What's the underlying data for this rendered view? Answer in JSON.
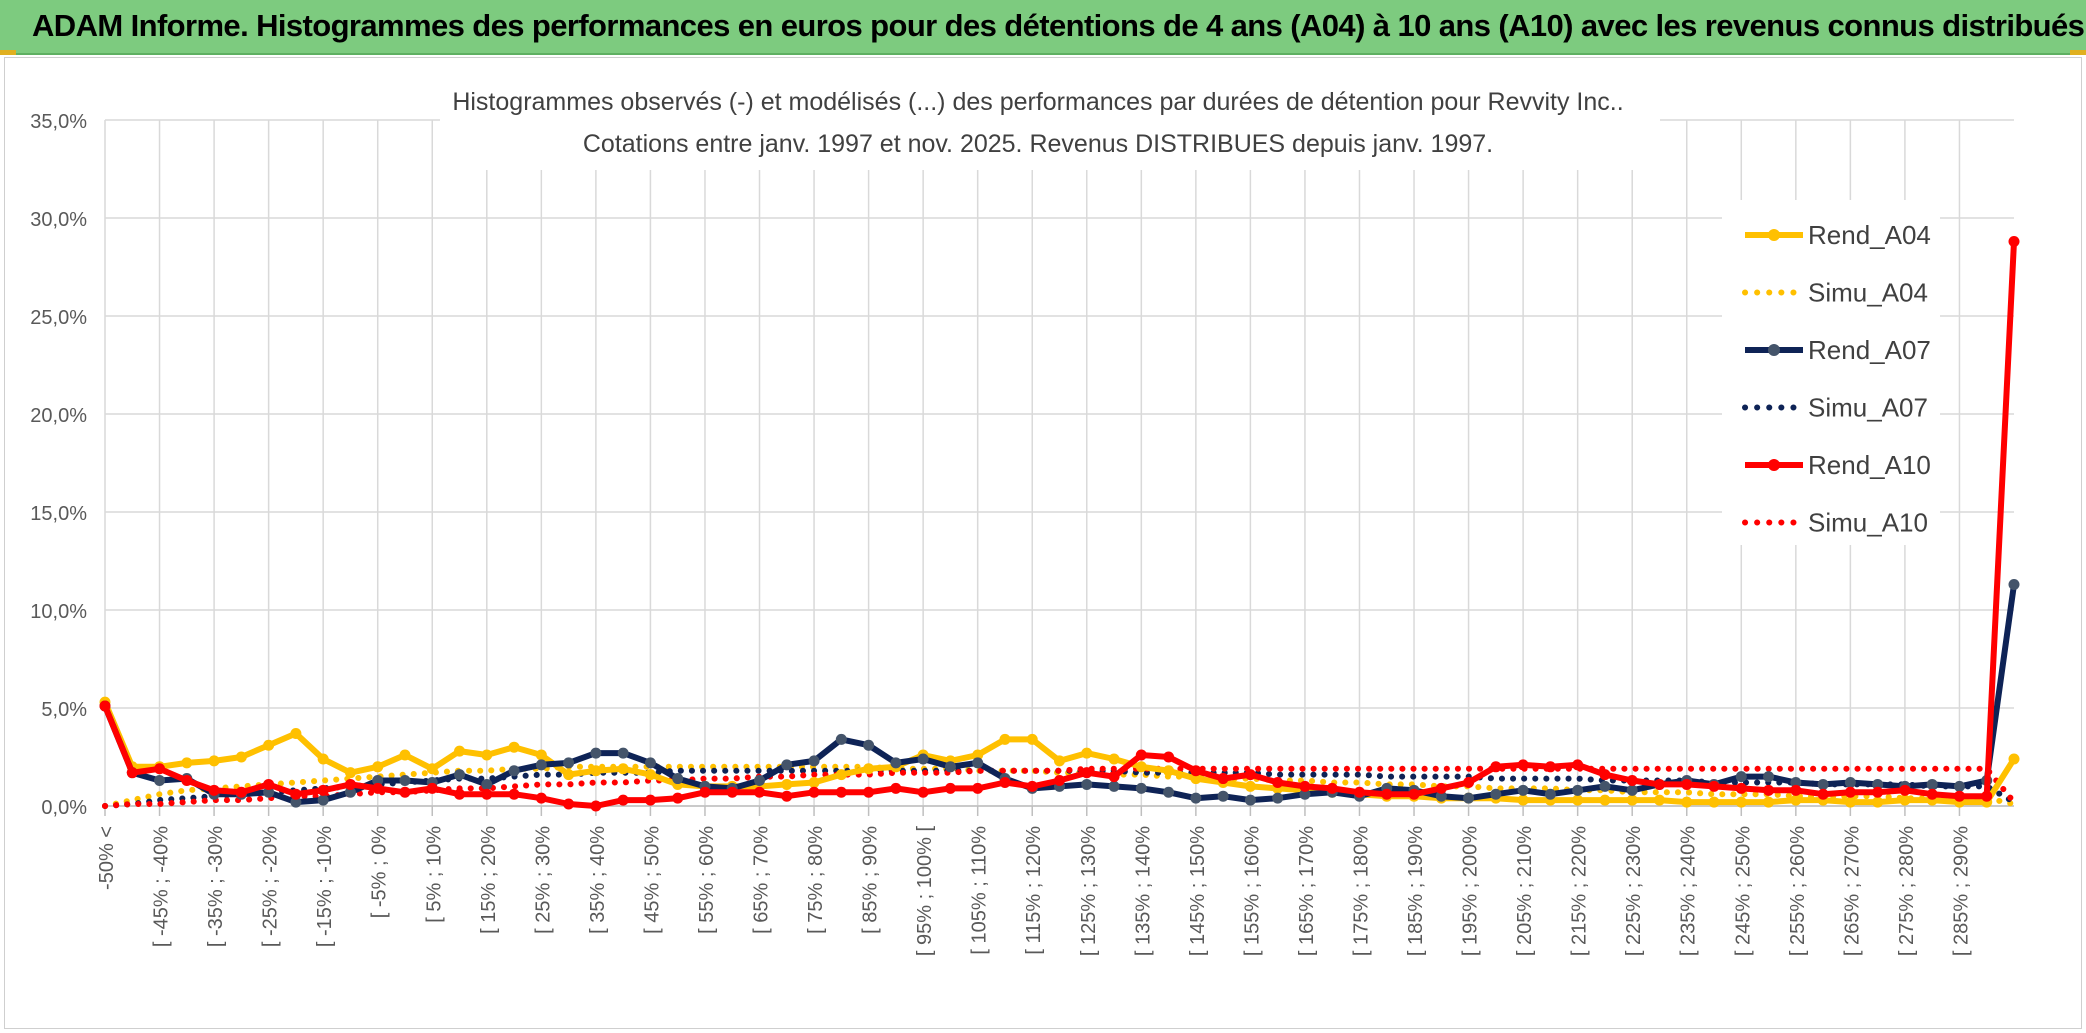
{
  "banner": {
    "title": "ADAM Informe. Histogrammes des performances en euros pour des détentions de 4 ans (A04) à 10 ans (A10) avec les revenus connus distribués",
    "bg_color": "#7dcb7f"
  },
  "chart_data": {
    "type": "line",
    "title_line1": "Histogrammes observés (-) et modélisés (...) des performances par durées de détention pour Revvity Inc..",
    "title_line2": "Cotations entre janv. 1997 et nov. 2025. Revenus DISTRIBUES depuis janv. 1997.",
    "ylim": [
      0,
      35
    ],
    "yticks": [
      "0,0%",
      "5,0%",
      "10,0%",
      "15,0%",
      "20,0%",
      "25,0%",
      "30,0%",
      "35,0%"
    ],
    "grid": true,
    "legend_position": "right",
    "categories": [
      "-50% <",
      "[ -50% ; -45%",
      "[ -45% ; -40%",
      "[ -40% ; -35%",
      "[ -35% ; -30%",
      "[ -30% ; -25%",
      "[ -25% ; -20%",
      "[ -20% ; -15%",
      "[ -15% ; -10%",
      "[ -10% ; -5%",
      "[ -5% ; 0%",
      "[ 0% ; 5%",
      "[ 5% ; 10%",
      "[ 10% ; 15%",
      "[ 15% ; 20%",
      "[ 20% ; 25%",
      "[ 25% ; 30%",
      "[ 30% ; 35%",
      "[ 35% ; 40%",
      "[ 40% ; 45%",
      "[ 45% ; 50%",
      "[ 50% ; 55%",
      "[ 55% ; 60%",
      "[ 60% ; 65%",
      "[ 65% ; 70%",
      "[ 70% ; 75%",
      "[ 75% ; 80%",
      "[ 80% ; 85%",
      "[ 85% ; 90%",
      "[ 90% ; 95%",
      "[ 95% ; 100% [",
      "[ 100% ; 105%",
      "[ 105% ; 110%",
      "[ 110% ; 115%",
      "[ 115% ; 120%",
      "[ 120% ; 125%",
      "[ 125% ; 130%",
      "[ 130% ; 135%",
      "[ 135% ; 140%",
      "[ 140% ; 145%",
      "[ 145% ; 150%",
      "[ 150% ; 155%",
      "[ 155% ; 160%",
      "[ 160% ; 165%",
      "[ 165% ; 170%",
      "[ 170% ; 175%",
      "[ 175% ; 180%",
      "[ 180% ; 185%",
      "[ 185% ; 190%",
      "[ 190% ; 195%",
      "[ 195% ; 200%",
      "[ 200% ; 205%",
      "[ 205% ; 210%",
      "[ 210% ; 215%",
      "[ 215% ; 220%",
      "[ 220% ; 225%",
      "[ 225% ; 230%",
      "[ 230% ; 235%",
      "[ 235% ; 240%",
      "[ 240% ; 245%",
      "[ 245% ; 250%",
      "[ 250% ; 255%",
      "[ 255% ; 260%",
      "[ 260% ; 265%",
      "[ 265% ; 270%",
      "[ 270% ; 275%",
      "[ 275% ; 280%",
      "[ 280% ; 285%",
      "[ 285% ; 290%",
      "[ 290% ; 295%",
      "295% <"
    ],
    "visible_tick_labels": [
      "-50% <",
      "[ -45% ; -40%",
      "[ -35% ; -30%",
      "[ -25% ; -20%",
      "[ -15% ; -10%",
      "[ -5% ; 0%",
      "[ 5% ; 10%",
      "[ 15% ; 20%",
      "[ 25% ; 30%",
      "[ 35% ; 40%",
      "[ 45% ; 50%",
      "[ 55% ; 60%",
      "[ 65% ; 70%",
      "[ 75% ; 80%",
      "[ 85% ; 90%",
      "[ 95% ; 100% [",
      "[ 105% ; 110%",
      "[ 115% ; 120%",
      "[ 125% ; 130%",
      "[ 135% ; 140%",
      "[ 145% ; 150%",
      "[ 155% ; 160%",
      "[ 165% ; 170%",
      "[ 175% ; 180%",
      "[ 185% ; 190%",
      "[ 195% ; 200%",
      "[ 205% ; 210%",
      "[ 215% ; 220%",
      "[ 225% ; 230%",
      "[ 235% ; 240%",
      "[ 245% ; 250%",
      "[ 255% ; 260%",
      "[ 265% ; 270%",
      "[ 275% ; 280%",
      "[ 285% ; 290%"
    ],
    "series": [
      {
        "name": "Rend_A04",
        "style": "solid",
        "color": "#ffc000",
        "values": [
          5.3,
          2.0,
          2.0,
          2.2,
          2.3,
          2.5,
          3.1,
          3.7,
          2.4,
          1.7,
          2.0,
          2.6,
          1.9,
          2.8,
          2.6,
          3.0,
          2.6,
          1.6,
          1.8,
          1.9,
          1.6,
          1.1,
          1.0,
          1.0,
          1.0,
          1.1,
          1.2,
          1.6,
          1.9,
          2.0,
          2.6,
          2.3,
          2.6,
          3.4,
          3.4,
          2.3,
          2.7,
          2.4,
          2.0,
          1.8,
          1.4,
          1.2,
          1.0,
          0.9,
          0.8,
          0.7,
          0.6,
          0.5,
          0.5,
          0.4,
          0.4,
          0.4,
          0.3,
          0.3,
          0.3,
          0.3,
          0.3,
          0.3,
          0.2,
          0.2,
          0.2,
          0.2,
          0.3,
          0.3,
          0.2,
          0.2,
          0.3,
          0.3,
          0.2,
          0.2,
          2.4
        ]
      },
      {
        "name": "Simu_A04",
        "style": "dotted",
        "color": "#ffc000",
        "values": [
          0.0,
          0.3,
          0.6,
          0.8,
          0.9,
          1.0,
          1.1,
          1.2,
          1.3,
          1.4,
          1.5,
          1.6,
          1.7,
          1.8,
          1.8,
          1.9,
          1.9,
          2.0,
          2.0,
          2.0,
          2.0,
          2.0,
          2.0,
          2.0,
          2.0,
          2.0,
          2.0,
          2.0,
          2.0,
          1.9,
          1.9,
          1.9,
          1.8,
          1.8,
          1.8,
          1.7,
          1.7,
          1.6,
          1.6,
          1.5,
          1.5,
          1.4,
          1.4,
          1.3,
          1.3,
          1.2,
          1.2,
          1.1,
          1.1,
          1.0,
          1.0,
          0.9,
          0.9,
          0.9,
          0.8,
          0.8,
          0.7,
          0.7,
          0.7,
          0.6,
          0.6,
          0.6,
          0.5,
          0.5,
          0.5,
          0.5,
          0.4,
          0.4,
          0.4,
          0.4,
          0.1
        ]
      },
      {
        "name": "Rend_A07",
        "style": "solid",
        "color": "#0e2356",
        "values": [
          5.1,
          1.7,
          1.3,
          1.4,
          0.6,
          0.6,
          0.7,
          0.2,
          0.3,
          0.7,
          1.3,
          1.3,
          1.2,
          1.6,
          1.1,
          1.8,
          2.1,
          2.2,
          2.7,
          2.7,
          2.2,
          1.4,
          1.0,
          0.9,
          1.3,
          2.1,
          2.3,
          3.4,
          3.1,
          2.2,
          2.4,
          2.0,
          2.2,
          1.4,
          0.9,
          1.0,
          1.1,
          1.0,
          0.9,
          0.7,
          0.4,
          0.5,
          0.3,
          0.4,
          0.6,
          0.7,
          0.5,
          0.9,
          0.8,
          0.5,
          0.4,
          0.6,
          0.8,
          0.6,
          0.8,
          1.0,
          0.8,
          1.1,
          1.3,
          1.1,
          1.5,
          1.5,
          1.2,
          1.1,
          1.2,
          1.1,
          1.0,
          1.1,
          1.0,
          1.3,
          11.3
        ]
      },
      {
        "name": "Simu_A07",
        "style": "dotted",
        "color": "#0e2356",
        "values": [
          0.0,
          0.1,
          0.3,
          0.4,
          0.5,
          0.6,
          0.7,
          0.8,
          0.9,
          1.0,
          1.1,
          1.2,
          1.3,
          1.4,
          1.4,
          1.5,
          1.6,
          1.6,
          1.7,
          1.7,
          1.7,
          1.8,
          1.8,
          1.8,
          1.8,
          1.8,
          1.8,
          1.8,
          1.8,
          1.8,
          1.8,
          1.8,
          1.8,
          1.8,
          1.8,
          1.8,
          1.8,
          1.8,
          1.7,
          1.7,
          1.7,
          1.7,
          1.7,
          1.6,
          1.6,
          1.6,
          1.6,
          1.5,
          1.5,
          1.5,
          1.5,
          1.4,
          1.4,
          1.4,
          1.4,
          1.3,
          1.3,
          1.3,
          1.3,
          1.2,
          1.2,
          1.2,
          1.2,
          1.1,
          1.1,
          1.1,
          1.1,
          1.0,
          1.0,
          1.0,
          0.2
        ]
      },
      {
        "name": "Rend_A10",
        "style": "solid",
        "color": "#ff0000",
        "values": [
          5.1,
          1.7,
          1.9,
          1.3,
          0.8,
          0.7,
          1.1,
          0.6,
          0.8,
          1.1,
          0.9,
          0.7,
          0.9,
          0.6,
          0.6,
          0.6,
          0.4,
          0.1,
          0.0,
          0.3,
          0.3,
          0.4,
          0.7,
          0.7,
          0.7,
          0.5,
          0.7,
          0.7,
          0.7,
          0.9,
          0.7,
          0.9,
          0.9,
          1.2,
          1.0,
          1.3,
          1.7,
          1.5,
          2.6,
          2.5,
          1.8,
          1.4,
          1.6,
          1.2,
          1.0,
          0.9,
          0.7,
          0.6,
          0.6,
          0.9,
          1.2,
          2.0,
          2.1,
          2.0,
          2.1,
          1.6,
          1.3,
          1.1,
          1.1,
          1.0,
          0.9,
          0.8,
          0.8,
          0.6,
          0.7,
          0.7,
          0.8,
          0.6,
          0.5,
          0.5,
          28.8
        ]
      },
      {
        "name": "Simu_A10",
        "style": "dotted",
        "color": "#ff0000",
        "values": [
          0.0,
          0.1,
          0.1,
          0.2,
          0.3,
          0.3,
          0.4,
          0.5,
          0.5,
          0.6,
          0.7,
          0.7,
          0.8,
          0.9,
          0.9,
          1.0,
          1.1,
          1.1,
          1.2,
          1.2,
          1.3,
          1.3,
          1.4,
          1.4,
          1.5,
          1.5,
          1.6,
          1.6,
          1.6,
          1.7,
          1.7,
          1.7,
          1.8,
          1.8,
          1.8,
          1.8,
          1.9,
          1.9,
          1.9,
          1.9,
          1.9,
          1.9,
          1.9,
          1.9,
          1.9,
          1.9,
          1.9,
          1.9,
          1.9,
          1.9,
          1.9,
          1.9,
          1.9,
          1.9,
          1.9,
          1.9,
          1.9,
          1.9,
          1.9,
          1.9,
          1.9,
          1.9,
          1.9,
          1.9,
          1.9,
          1.9,
          1.9,
          1.9,
          1.9,
          1.9,
          0.2
        ]
      }
    ]
  }
}
